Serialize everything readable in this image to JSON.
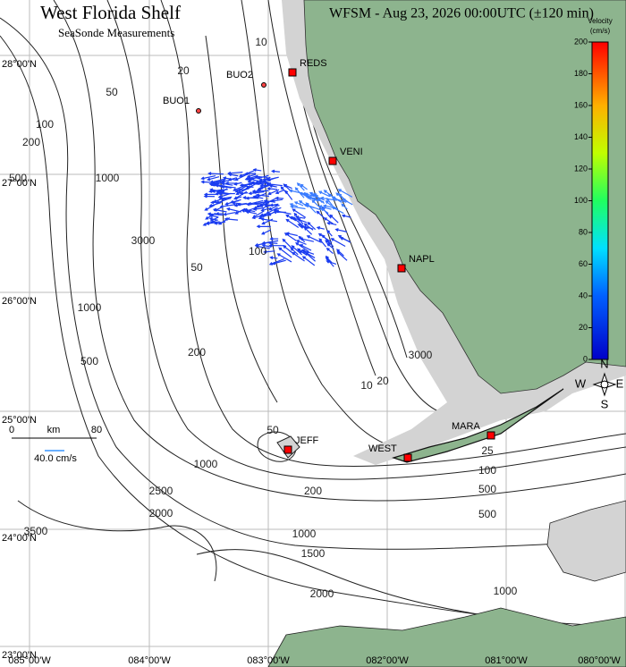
{
  "header": {
    "title": "West Florida Shelf",
    "subtitle": "SeaSonde Measurements",
    "info": "WFSM - Aug 23, 2026 00:00UTC (±120 min)"
  },
  "colorbar": {
    "label_top": "Velocity",
    "label_unit": "(cm/s)",
    "ticks": [
      0,
      20,
      40,
      60,
      80,
      100,
      120,
      140,
      160,
      180,
      200
    ]
  },
  "scale": {
    "unit": "km",
    "start": "0",
    "end": "80",
    "vector": "40.0 cm/s"
  },
  "compass": {
    "n": "N",
    "e": "E",
    "s": "S",
    "w": "W"
  },
  "lat_labels": [
    "28°00'N",
    "27°00'N",
    "26°00'N",
    "25°00'N",
    "24°00'N",
    "23°00'N"
  ],
  "lon_labels": [
    "085°00'W",
    "084°00'W",
    "083°00'W",
    "082°00'W",
    "081°00'W",
    "080°00'W"
  ],
  "stations": [
    "REDS",
    "VENI",
    "NAPL",
    "MARA",
    "WEST",
    "JEFF"
  ],
  "buoys": [
    "BUO1",
    "BUO2"
  ],
  "contour_labels": [
    "10",
    "20",
    "50",
    "100",
    "200",
    "500",
    "1000",
    "3000",
    "50",
    "100",
    "200",
    "500",
    "1000",
    "3000",
    "10",
    "20",
    "25",
    "100",
    "200",
    "500",
    "500",
    "1000",
    "1000",
    "1500",
    "2000",
    "3500",
    "2500",
    "2000",
    "50",
    "1000"
  ]
}
